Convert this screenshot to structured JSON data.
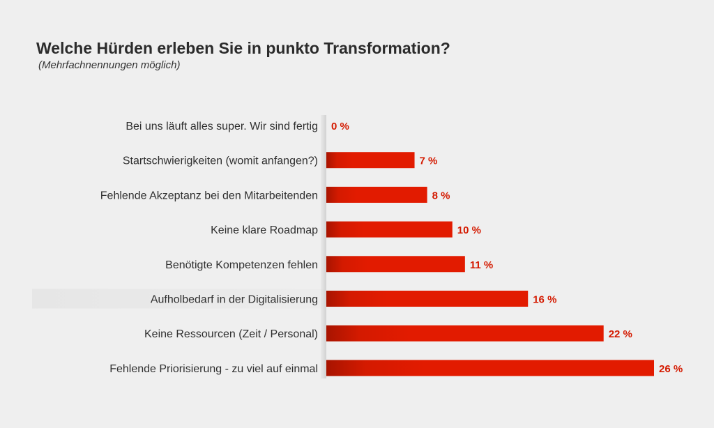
{
  "chart_data": {
    "type": "bar",
    "orientation": "horizontal",
    "title": "Welche Hürden erleben Sie in punkto Transformation?",
    "subtitle": "(Mehrfachnennungen möglich)",
    "categories": [
      "Bei uns läuft alles super. Wir sind fertig",
      "Startschwierigkeiten (womit anfangen?)",
      "Fehlende Akzeptanz bei den Mitarbeitenden",
      "Keine klare Roadmap",
      "Benötigte Kompetenzen fehlen",
      "Aufholbedarf in der Digitalisierung",
      "Keine Ressourcen (Zeit / Personal)",
      "Fehlende Priorisierung - zu viel auf einmal"
    ],
    "values": [
      0,
      7,
      8,
      10,
      11,
      16,
      22,
      26
    ],
    "value_labels": [
      "0 %",
      "7 %",
      "8 %",
      "10 %",
      "11 %",
      "16 %",
      "22 %",
      "26 %"
    ],
    "highlighted_category": "Aufholbedarf in der Digitalisierung",
    "xlim": [
      0,
      26
    ],
    "grid": false,
    "legend": "none",
    "colors": {
      "bar": "#e21b00",
      "bar_shadow": "#a81400",
      "value_label": "#d41a00",
      "highlight_band": "#e6e6e6",
      "axis_shade": "#d2d2d2"
    }
  }
}
